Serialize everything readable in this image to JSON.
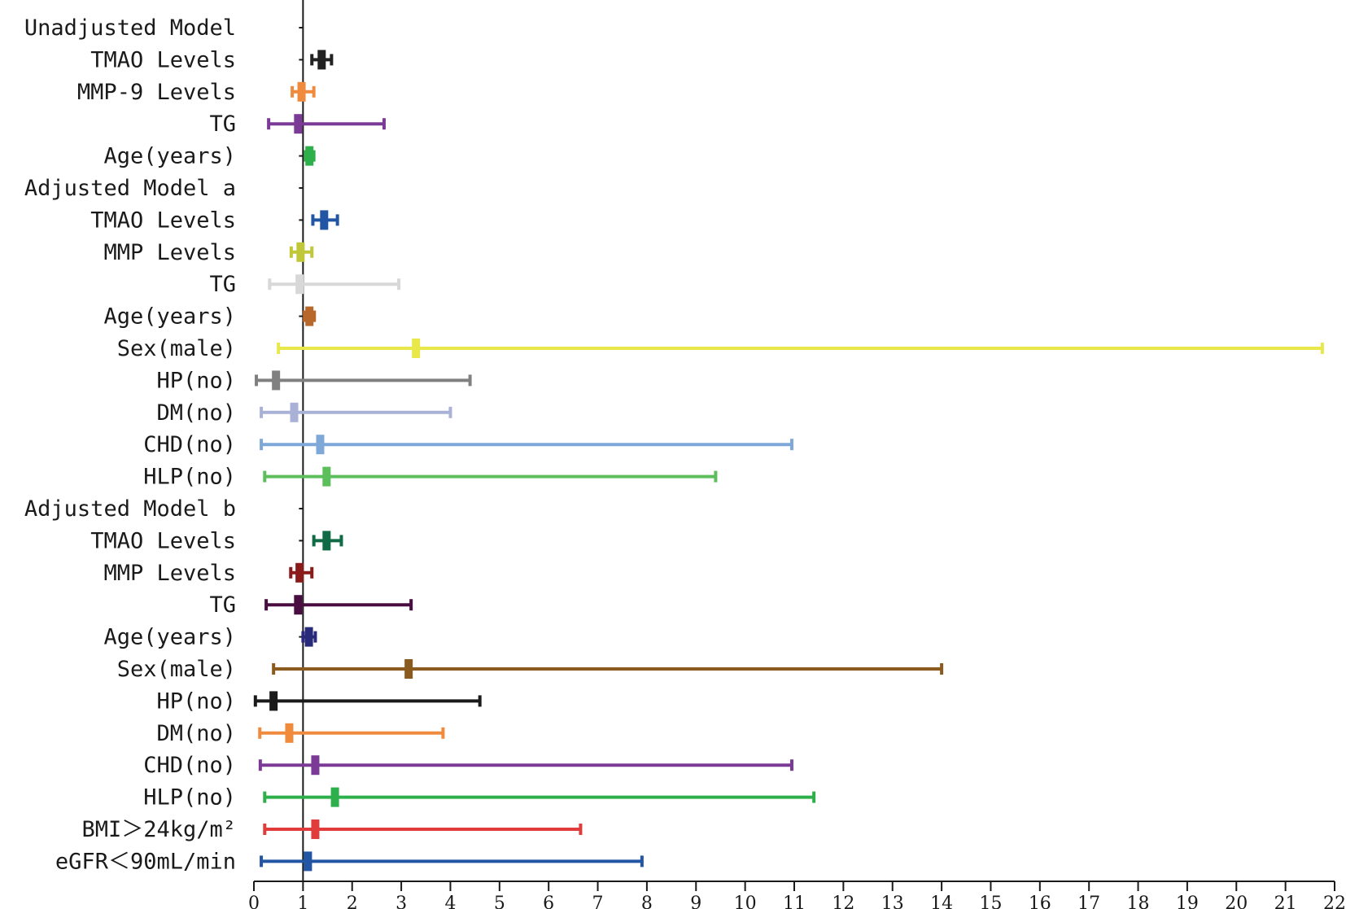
{
  "chart_data": {
    "type": "forest",
    "title": "",
    "xlabel": "",
    "ylabel": "",
    "reference_line": 1,
    "xlim": [
      0,
      22
    ],
    "xticks": [
      "0",
      "1",
      "2",
      "3",
      "4",
      "5",
      "6",
      "7",
      "8",
      "9",
      "10",
      "11",
      "12",
      "13",
      "14",
      "15",
      "16",
      "17",
      "18",
      "19",
      "20",
      "21",
      "22"
    ],
    "rows": [
      {
        "label": "Unadjusted Model",
        "header": true
      },
      {
        "label": "TMAO Levels",
        "or": 1.38,
        "lower": 1.18,
        "upper": 1.58,
        "color": "#222222"
      },
      {
        "label": "MMP-9 Levels",
        "or": 0.97,
        "lower": 0.78,
        "upper": 1.22,
        "color": "#f08a3c"
      },
      {
        "label": "TG",
        "or": 0.9,
        "lower": 0.3,
        "upper": 2.65,
        "color": "#7b3a96"
      },
      {
        "label": "Age(years)",
        "or": 1.13,
        "lower": 1.05,
        "upper": 1.22,
        "color": "#2db04b"
      },
      {
        "label": "Adjusted Model a",
        "header": true
      },
      {
        "label": "TMAO Levels",
        "or": 1.43,
        "lower": 1.2,
        "upper": 1.7,
        "color": "#2255a4"
      },
      {
        "label": "MMP Levels",
        "or": 0.95,
        "lower": 0.76,
        "upper": 1.18,
        "color": "#c0c83a"
      },
      {
        "label": "TG",
        "or": 0.93,
        "lower": 0.32,
        "upper": 2.95,
        "color": "#d8d8d8"
      },
      {
        "label": "Age(years)",
        "or": 1.13,
        "lower": 1.03,
        "upper": 1.23,
        "color": "#b8682a"
      },
      {
        "label": "Sex(male)",
        "or": 3.3,
        "lower": 0.5,
        "upper": 21.75,
        "color": "#e8e84a"
      },
      {
        "label": "HP(no)",
        "or": 0.45,
        "lower": 0.05,
        "upper": 4.4,
        "color": "#808080"
      },
      {
        "label": "DM(no)",
        "or": 0.82,
        "lower": 0.15,
        "upper": 4.0,
        "color": "#a9b1d6"
      },
      {
        "label": "CHD(no)",
        "or": 1.35,
        "lower": 0.15,
        "upper": 10.95,
        "color": "#7ea8d8"
      },
      {
        "label": "HLP(no)",
        "or": 1.48,
        "lower": 0.22,
        "upper": 9.4,
        "color": "#5cbf5c"
      },
      {
        "label": "Adjusted Model b",
        "header": true
      },
      {
        "label": "TMAO Levels",
        "or": 1.48,
        "lower": 1.22,
        "upper": 1.78,
        "color": "#0f6b45"
      },
      {
        "label": "MMP Levels",
        "or": 0.93,
        "lower": 0.75,
        "upper": 1.18,
        "color": "#8b1a1a"
      },
      {
        "label": "TG",
        "or": 0.9,
        "lower": 0.25,
        "upper": 3.2,
        "color": "#4a0d42"
      },
      {
        "label": "Age(years)",
        "or": 1.12,
        "lower": 1.0,
        "upper": 1.25,
        "color": "#2a2a7a"
      },
      {
        "label": "Sex(male)",
        "or": 3.15,
        "lower": 0.4,
        "upper": 14.0,
        "color": "#8b5a1e"
      },
      {
        "label": "HP(no)",
        "or": 0.4,
        "lower": 0.03,
        "upper": 4.6,
        "color": "#1a1a1a"
      },
      {
        "label": "DM(no)",
        "or": 0.72,
        "lower": 0.12,
        "upper": 3.85,
        "color": "#f08a3c"
      },
      {
        "label": "CHD(no)",
        "or": 1.25,
        "lower": 0.13,
        "upper": 10.95,
        "color": "#7b3a96"
      },
      {
        "label": "HLP(no)",
        "or": 1.65,
        "lower": 0.22,
        "upper": 11.4,
        "color": "#2db04b"
      },
      {
        "label": "BMI＞24kg/m²",
        "or": 1.25,
        "lower": 0.22,
        "upper": 6.65,
        "color": "#e03c3c"
      },
      {
        "label": "eGFR＜90mL/min",
        "or": 1.1,
        "lower": 0.15,
        "upper": 7.9,
        "color": "#2255a4"
      }
    ]
  }
}
